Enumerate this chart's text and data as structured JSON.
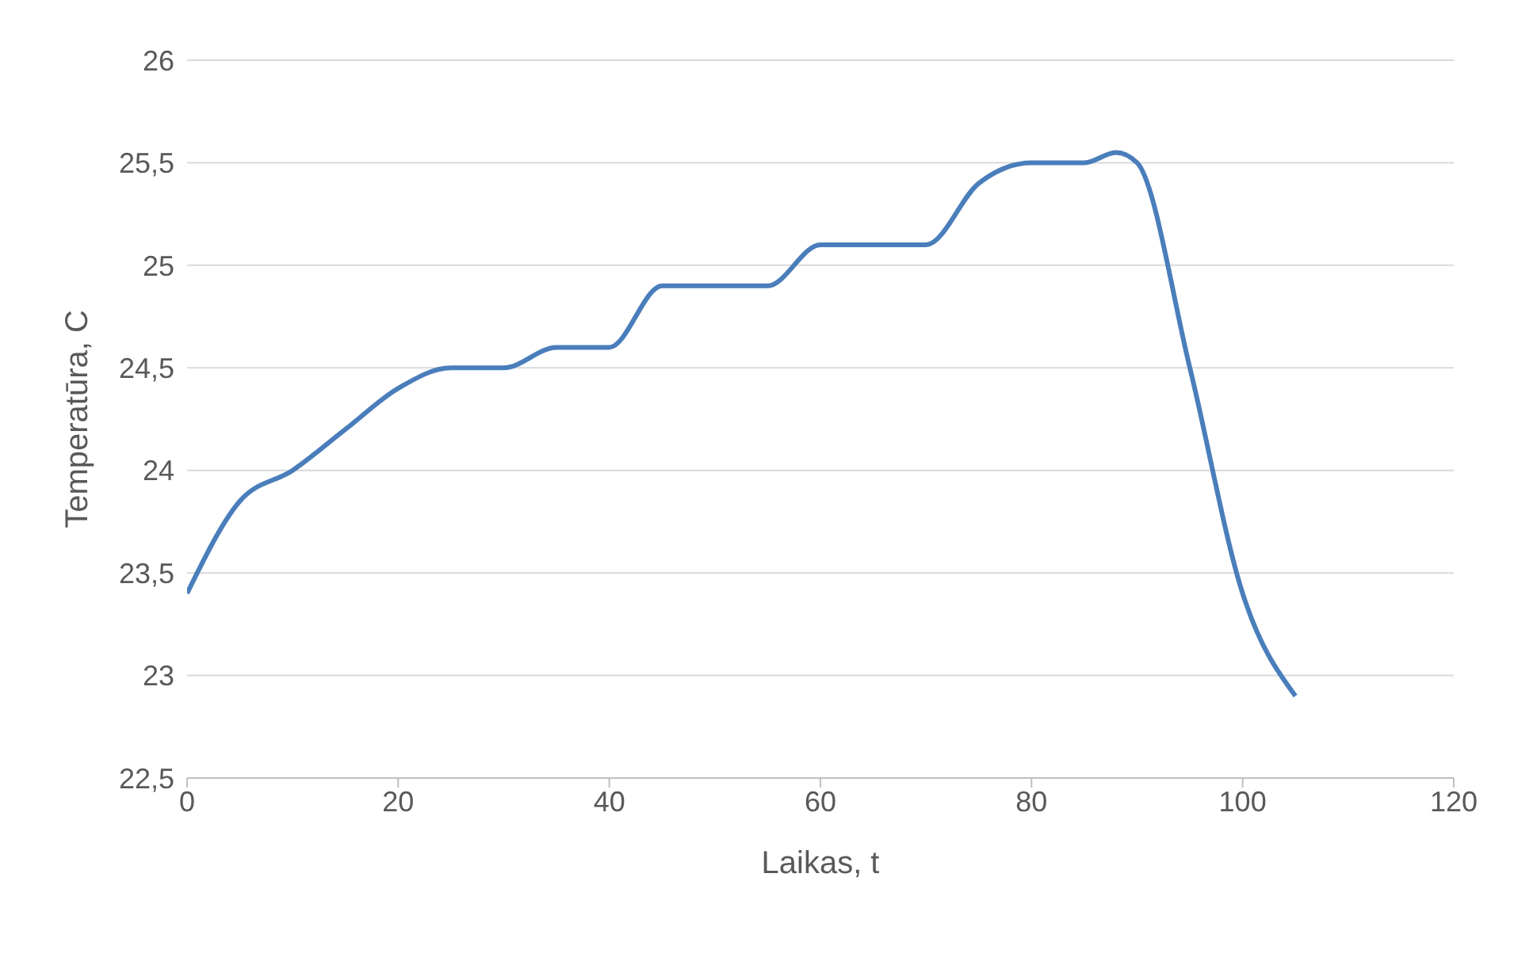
{
  "chart_data": {
    "type": "line",
    "xlabel": "Laikas, t",
    "ylabel": "Temperatūra, C",
    "x": [
      0,
      5,
      10,
      15,
      20,
      25,
      30,
      35,
      40,
      45,
      50,
      55,
      60,
      65,
      70,
      75,
      80,
      85,
      88,
      90,
      95,
      100,
      105
    ],
    "series": [
      {
        "color": "#4a7ebb",
        "values": [
          23.4,
          23.85,
          24.0,
          24.2,
          24.4,
          24.5,
          24.5,
          24.6,
          24.6,
          24.9,
          24.9,
          24.9,
          25.1,
          25.1,
          25.1,
          25.4,
          25.5,
          25.5,
          25.55,
          25.5,
          24.5,
          23.4,
          22.9
        ]
      }
    ],
    "xlim": [
      0,
      120
    ],
    "xticks": [
      0,
      20,
      40,
      60,
      80,
      100,
      120
    ],
    "ylim": [
      22.5,
      26
    ],
    "yticks": [
      {
        "value": 22.5,
        "label": "22,5"
      },
      23,
      {
        "value": 23.5,
        "label": "23,5"
      },
      24,
      {
        "value": 24.5,
        "label": "24,5"
      },
      25,
      {
        "value": 25.5,
        "label": "25,5"
      },
      26
    ],
    "grid": "y",
    "marker": "none",
    "line_style": "solid"
  }
}
